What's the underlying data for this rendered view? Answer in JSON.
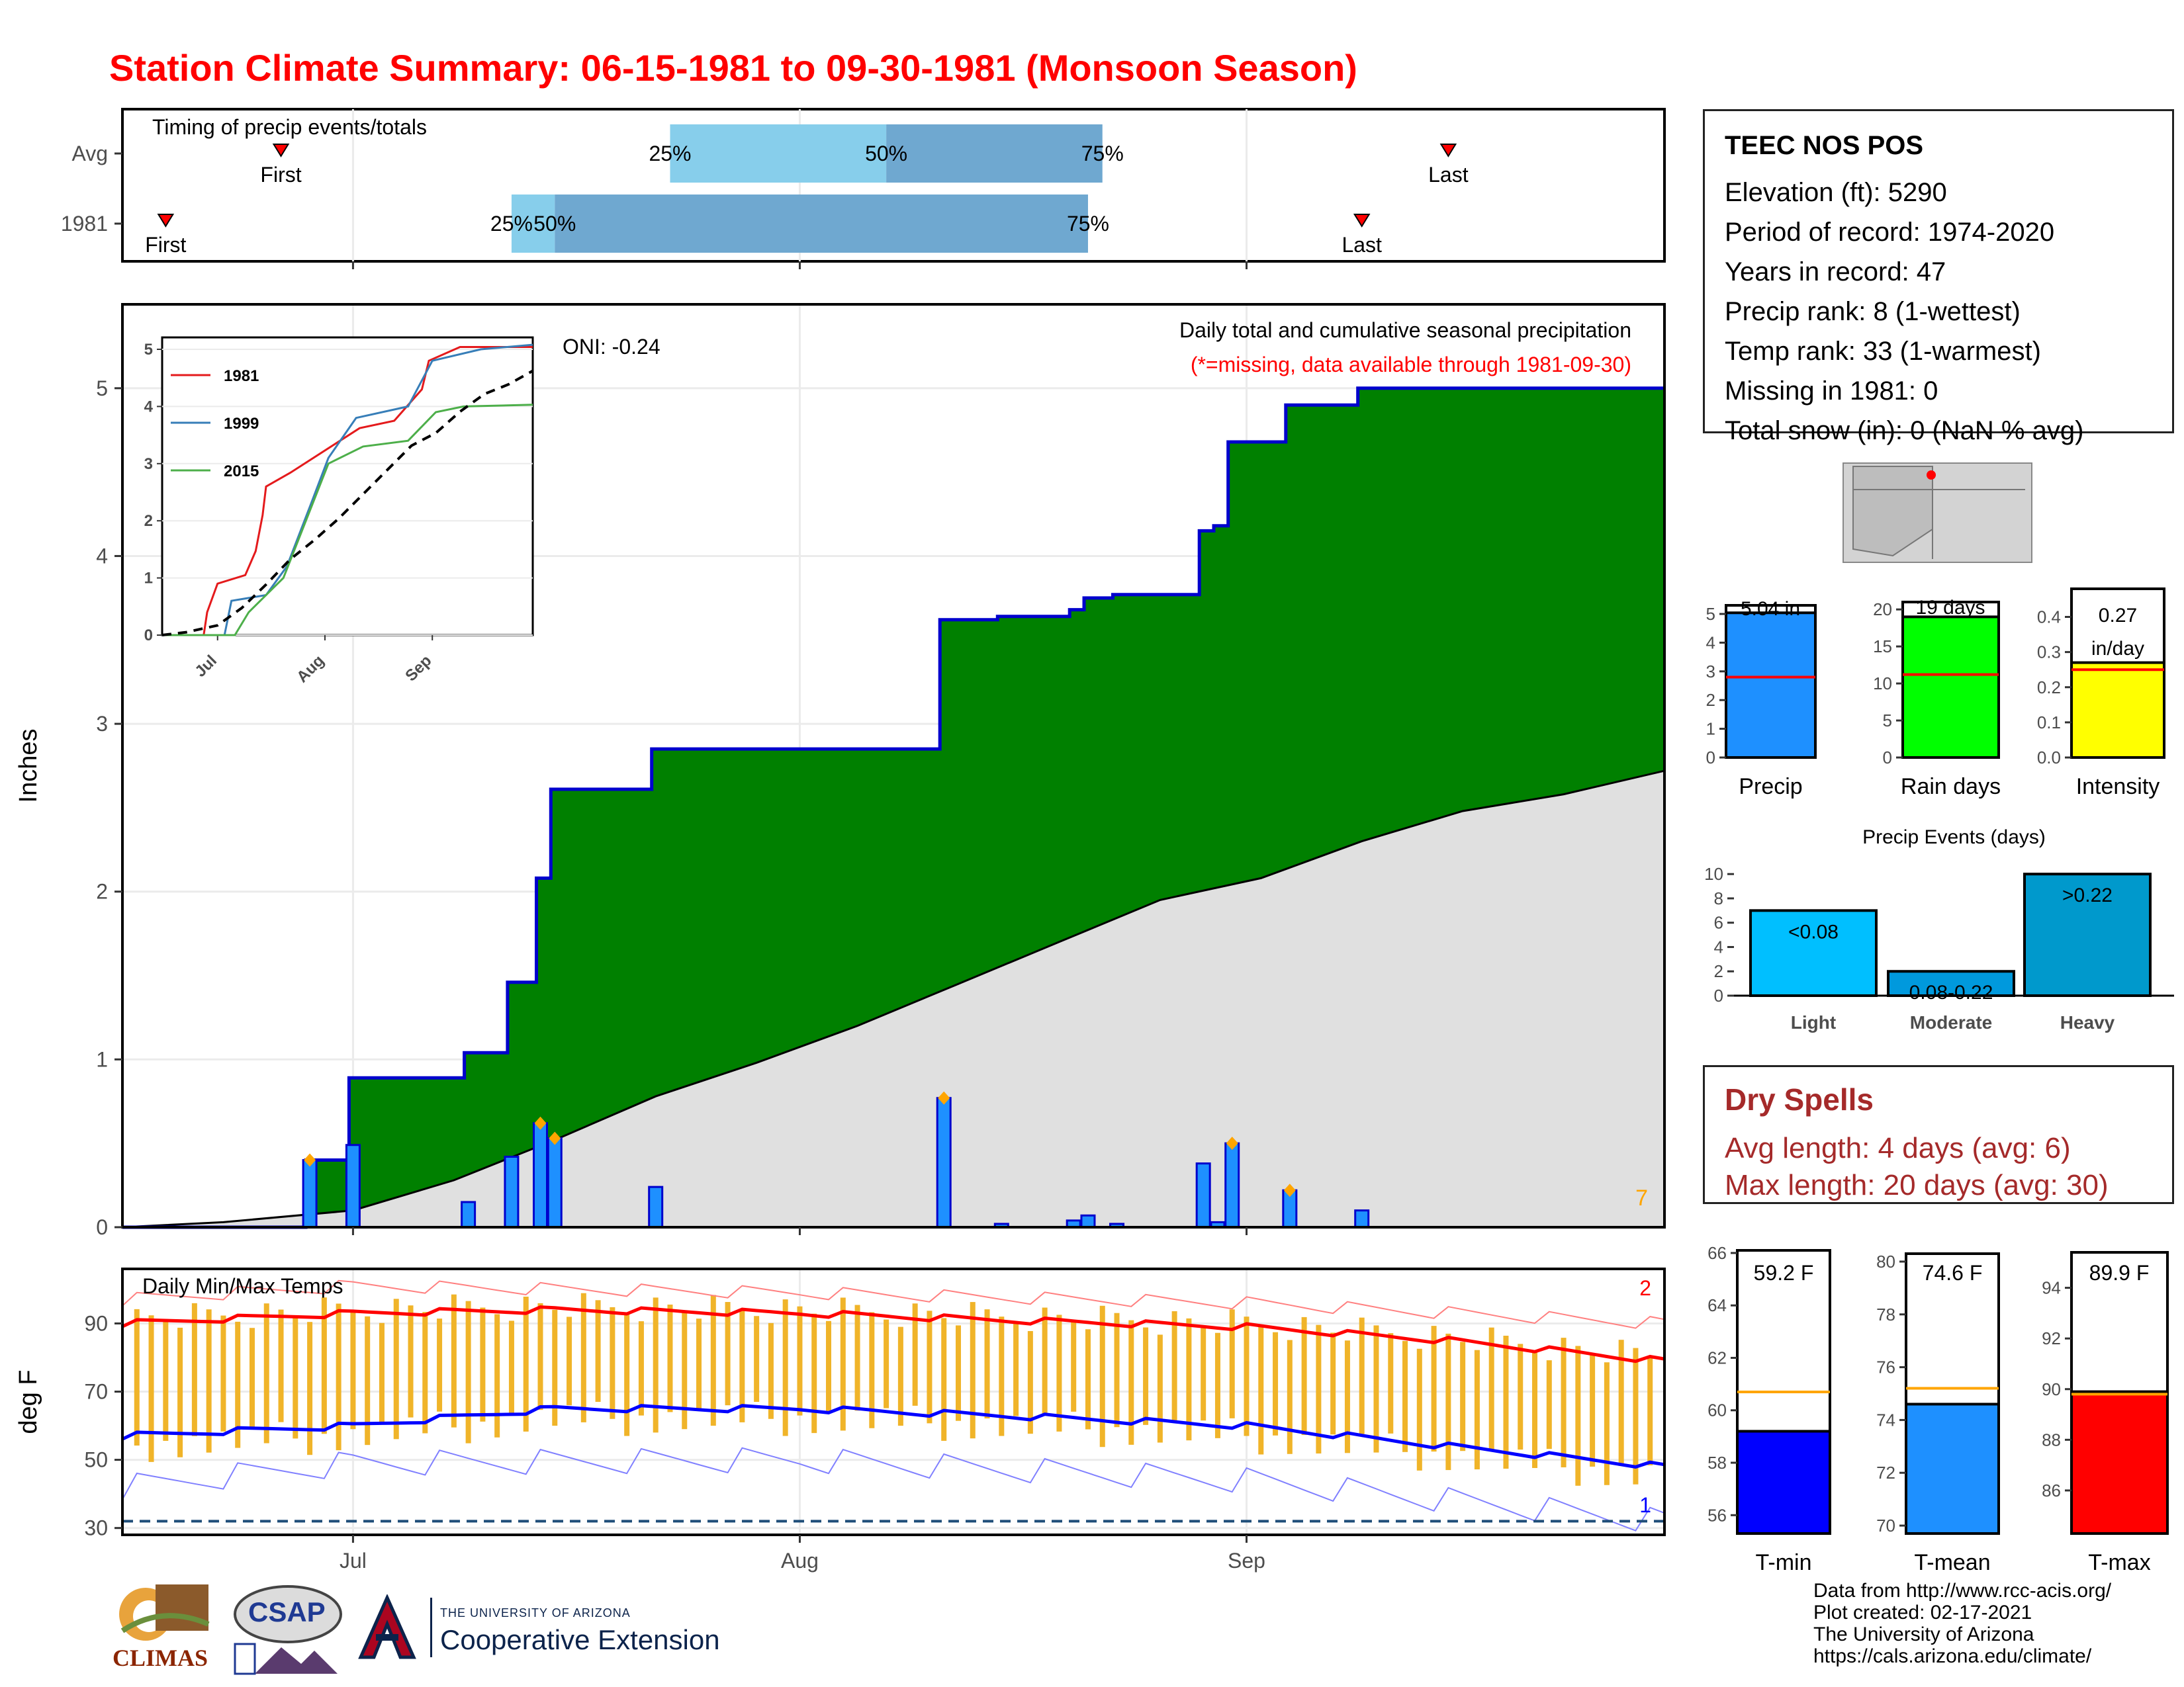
{
  "title": "Station Climate Summary: 06-15-1981 to 09-30-1981 (Monsoon Season)",
  "colors": {
    "title": "#ff0000",
    "cumulative_fill": "#008000",
    "cumulative_line": "#0000cd",
    "avg_fill": "#e0e0e0",
    "daily_bar": "#1e90ff",
    "marker": "#ffa500",
    "tmax_line": "#ff0000",
    "tmin_line": "#0000ff",
    "temp_bar": "#f0b429",
    "timing_light": "#87ceeb",
    "timing_dark": "#6fa8d0",
    "dry_spell_text": "#a52a2a"
  },
  "station": {
    "name": "TEEC NOS POS",
    "lines": [
      "Elevation (ft): 5290",
      "Period of record: 1974-2020",
      "Years in record: 47",
      "Precip rank: 8 (1-wettest)",
      "Temp rank: 33 (1-warmest)",
      "Missing in 1981: 0",
      "Total snow (in): 0 (NaN % avg)"
    ]
  },
  "dry_spells": {
    "title": "Dry Spells",
    "avg_line": "Avg length: 4 days (avg: 6)",
    "max_line": "Max length: 20 days (avg: 30)"
  },
  "credits": [
    "Data from http://www.rcc-acis.org/",
    "Plot created: 02-17-2021",
    "The University of Arizona",
    "https://cals.arizona.edu/climate/"
  ],
  "logos": {
    "climas": "CLIMAS",
    "csap": "CSAP",
    "ua_top": "THE UNIVERSITY OF ARIZONA",
    "ua_bottom": "Cooperative Extension"
  },
  "chart_data": [
    {
      "id": "timing",
      "type": "bar",
      "title": "Timing of precip events/totals",
      "categories": [
        "Avg",
        "1981"
      ],
      "x_ticks": [
        "Jul",
        "Aug",
        "Sep"
      ],
      "rows": [
        {
          "label": "Avg",
          "first": "06-26",
          "p25": "07-23",
          "p50": "08-07",
          "p75": "08-22",
          "last": "09-15"
        },
        {
          "label": "1981",
          "first": "06-18",
          "p25": "07-12",
          "p50": "07-15",
          "p75": "08-21",
          "last": "09-09"
        }
      ],
      "marker_labels": {
        "first": "First",
        "last": "Last",
        "p25": "25%",
        "p50": "50%",
        "p75": "75%"
      }
    },
    {
      "id": "precip",
      "type": "area",
      "title": "Daily total and cumulative seasonal precipitation",
      "subtitle": "(*=missing, data available through 1981-09-30)",
      "annotation": "ONI: -0.24",
      "corner_number": "7",
      "ylabel": "Inches",
      "ylim": [
        0,
        5.5
      ],
      "y_ticks": [
        0,
        1,
        2,
        3,
        4,
        5
      ],
      "x_ticks": [
        "Jul",
        "Aug",
        "Sep"
      ],
      "season_start": "06-15",
      "season_end": "09-30",
      "daily_precip": [
        {
          "date": "06-28",
          "value": 0.4,
          "marker": true
        },
        {
          "date": "07-01",
          "value": 0.49,
          "marker": false
        },
        {
          "date": "07-09",
          "value": 0.15,
          "marker": false
        },
        {
          "date": "07-12",
          "value": 0.42,
          "marker": false
        },
        {
          "date": "07-14",
          "value": 0.62,
          "marker": true
        },
        {
          "date": "07-15",
          "value": 0.53,
          "marker": true
        },
        {
          "date": "07-22",
          "value": 0.24,
          "marker": false
        },
        {
          "date": "08-11",
          "value": 0.77,
          "marker": true
        },
        {
          "date": "08-15",
          "value": 0.02,
          "marker": false
        },
        {
          "date": "08-20",
          "value": 0.04,
          "marker": false
        },
        {
          "date": "08-21",
          "value": 0.07,
          "marker": false
        },
        {
          "date": "08-23",
          "value": 0.02,
          "marker": false
        },
        {
          "date": "08-29",
          "value": 0.38,
          "marker": false
        },
        {
          "date": "08-30",
          "value": 0.03,
          "marker": false
        },
        {
          "date": "08-31",
          "value": 0.5,
          "marker": true
        },
        {
          "date": "09-04",
          "value": 0.22,
          "marker": true
        },
        {
          "date": "09-09",
          "value": 0.1,
          "marker": false
        }
      ],
      "cumulative_total": 5.04,
      "avg_cumulative": {
        "dates": [
          "06-15",
          "06-22",
          "07-01",
          "07-08",
          "07-15",
          "07-22",
          "07-29",
          "08-05",
          "08-12",
          "08-19",
          "08-26",
          "09-02",
          "09-09",
          "09-16",
          "09-23",
          "09-30"
        ],
        "values": [
          0.0,
          0.03,
          0.1,
          0.28,
          0.52,
          0.78,
          0.98,
          1.2,
          1.45,
          1.7,
          1.95,
          2.08,
          2.3,
          2.48,
          2.58,
          2.72
        ]
      },
      "inset": {
        "series": [
          {
            "name": "1981",
            "color": "#e41a1c",
            "total": 5.04
          },
          {
            "name": "1999",
            "color": "#377eb8",
            "total": 5.08
          },
          {
            "name": "2015",
            "color": "#4daf4a",
            "total": 4.03
          }
        ],
        "y_ticks": [
          0,
          1,
          2,
          3,
          4,
          5
        ],
        "x_ticks": [
          "Jul",
          "Aug",
          "Sep"
        ]
      }
    },
    {
      "id": "temps",
      "type": "line",
      "title": "Daily Min/Max Temps",
      "ylabel": "deg F",
      "ylim": [
        28,
        106
      ],
      "y_ticks": [
        30,
        50,
        70,
        90
      ],
      "x_ticks": [
        "Jul",
        "Aug",
        "Sep"
      ],
      "reference_line": 32,
      "corner_top": "2",
      "corner_bottom": "1",
      "avg_tmax": {
        "dates": [
          "06-15",
          "07-01",
          "07-15",
          "08-01",
          "08-15",
          "09-01",
          "09-15",
          "09-30"
        ],
        "values": [
          90,
          93,
          94,
          93,
          91,
          89,
          85,
          79
        ]
      },
      "avg_tmin": {
        "dates": [
          "06-15",
          "07-01",
          "07-15",
          "08-01",
          "08-15",
          "09-01",
          "09-15",
          "09-30"
        ],
        "values": [
          57,
          60,
          65,
          65,
          63,
          60,
          54,
          48
        ]
      },
      "record_high": {
        "dates": [
          "06-15",
          "07-01",
          "08-01",
          "09-01",
          "09-30"
        ],
        "values": [
          97,
          101,
          99,
          96,
          90
        ]
      },
      "record_low": {
        "dates": [
          "06-15",
          "07-01",
          "08-01",
          "09-01",
          "09-30"
        ],
        "values": [
          42,
          49,
          50,
          44,
          32
        ]
      },
      "daily_range_sample": {
        "low_range": [
          45,
          70
        ],
        "high_range": [
          78,
          104
        ]
      }
    },
    {
      "id": "precip_totals",
      "type": "bar",
      "categories": [
        "Precip",
        "Rain days",
        "Intensity"
      ],
      "panels": [
        {
          "label": "Precip",
          "value": 5.04,
          "value_text": "5.04 in",
          "avg": 2.8,
          "ylim": [
            0,
            5.3
          ],
          "y_ticks": [
            0,
            1,
            2,
            3,
            4,
            5
          ],
          "color": "#1e90ff"
        },
        {
          "label": "Rain days",
          "value": 19,
          "value_text": "19 days",
          "avg": 11.2,
          "ylim": [
            0,
            21
          ],
          "y_ticks": [
            0,
            5,
            10,
            15,
            20
          ],
          "color": "#00ff00"
        },
        {
          "label": "Intensity",
          "value": 0.27,
          "value_text": "0.27",
          "value_text2": "in/day",
          "avg": 0.25,
          "ylim": [
            0,
            0.48
          ],
          "y_ticks": [
            0.0,
            0.1,
            0.2,
            0.3,
            0.4
          ],
          "color": "#ffff00"
        }
      ]
    },
    {
      "id": "events",
      "type": "bar",
      "title": "Precip Events (days)",
      "categories": [
        "Light",
        "Moderate",
        "Heavy"
      ],
      "values": [
        7,
        2,
        10
      ],
      "bar_labels": [
        "<0.08",
        "0.08-0.22",
        ">0.22"
      ],
      "ylim": [
        0,
        10.5
      ],
      "y_ticks": [
        0,
        2,
        4,
        6,
        8,
        10
      ],
      "colors": [
        "#00bfff",
        "#0099dd",
        "#0099cc"
      ]
    },
    {
      "id": "temp_summary",
      "type": "bar",
      "categories": [
        "T-min",
        "T-mean",
        "T-max"
      ],
      "panels": [
        {
          "label": "T-min",
          "value": 59.2,
          "value_text": "59.2 F",
          "avg": 60.7,
          "ylim": [
            55.3,
            66.1
          ],
          "y_ticks": [
            56,
            58,
            60,
            62,
            64,
            66
          ],
          "color": "#0000ff"
        },
        {
          "label": "T-mean",
          "value": 74.6,
          "value_text": "74.6 F",
          "avg": 75.2,
          "ylim": [
            69.7,
            80.3
          ],
          "y_ticks": [
            70,
            72,
            74,
            76,
            78,
            80
          ],
          "color": "#1e90ff"
        },
        {
          "label": "T-max",
          "value": 89.9,
          "value_text": "89.9 F",
          "avg": 89.8,
          "ylim": [
            84.3,
            95.4
          ],
          "y_ticks": [
            86,
            88,
            90,
            92,
            94
          ],
          "color": "#ff0000"
        }
      ]
    }
  ]
}
